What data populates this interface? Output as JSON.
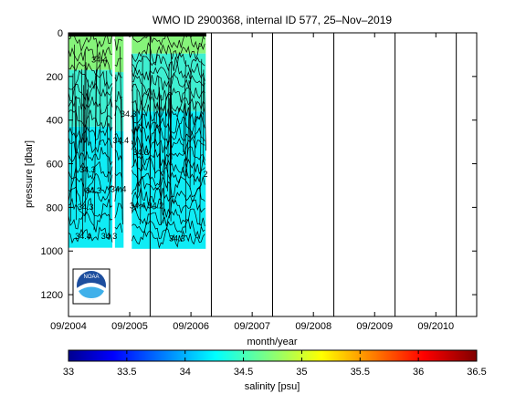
{
  "chart_data": {
    "type": "heatmap",
    "title": "WMO ID 2900368, internal ID 577, 25–Nov–2019",
    "xlabel": "month/year",
    "ylabel": "pressure [dbar]",
    "x_tick_labels": [
      "09/2004",
      "09/2005",
      "09/2006",
      "09/2007",
      "09/2008",
      "09/2009",
      "09/2010"
    ],
    "y_tick_labels": [
      "0",
      "200",
      "400",
      "600",
      "800",
      "1000",
      "1200"
    ],
    "y_ticks": [
      0,
      200,
      400,
      600,
      800,
      1000,
      1200
    ],
    "ylim": [
      1300,
      0
    ],
    "y_reversed": true,
    "xlim_months": [
      0,
      80
    ],
    "x_tick_months": [
      0,
      12,
      24,
      36,
      48,
      60,
      72
    ],
    "vertical_lines_months": [
      16,
      28,
      40,
      52,
      64,
      76
    ],
    "data_extent_months": [
      0,
      27
    ],
    "data_max_pressure": 1000,
    "gap_months": [
      [
        8.6,
        9.1
      ],
      [
        10.8,
        12.4
      ]
    ],
    "salinity_regions": [
      {
        "start": 0,
        "end": 8.6,
        "fresh_to": 170,
        "mid_to": 430,
        "top": 0,
        "bottom": 985
      },
      {
        "start": 9.1,
        "end": 10.8,
        "fresh_to": 180,
        "mid_to": 450,
        "top": 0,
        "bottom": 985
      },
      {
        "start": 12.4,
        "end": 26.9,
        "fresh_to": 95,
        "mid_to": 360,
        "top": 0,
        "bottom": 990
      }
    ],
    "contour_labels": [
      {
        "text": "34.4",
        "month": 4.5,
        "p": 135
      },
      {
        "text": "34.3",
        "month": 10.2,
        "p": 385
      },
      {
        "text": "34.4",
        "month": 8.7,
        "p": 505
      },
      {
        "text": "34.3",
        "month": 2.2,
        "p": 640
      },
      {
        "text": "34.3",
        "month": 12.6,
        "p": 560
      },
      {
        "text": "34.3",
        "month": 3.3,
        "p": 735
      },
      {
        "text": "34.4",
        "month": 8.2,
        "p": 730
      },
      {
        "text": "34.3",
        "month": 1.8,
        "p": 810
      },
      {
        "text": "34.4",
        "month": 12.0,
        "p": 805
      },
      {
        "text": "34.2",
        "month": 15.5,
        "p": 805
      },
      {
        "text": "34.4",
        "month": 1.3,
        "p": 945
      },
      {
        "text": "34.3",
        "month": 6.4,
        "p": 945
      },
      {
        "text": "34.3",
        "month": 19.7,
        "p": 955
      },
      {
        "text": "2",
        "month": 26.4,
        "p": 660
      }
    ],
    "colorbar": {
      "label": "salinity [psu]",
      "min": 33,
      "max": 36.5,
      "tick_labels": [
        "33",
        "33.5",
        "34",
        "34.5",
        "35",
        "35.5",
        "36",
        "36.5"
      ],
      "ticks": [
        33,
        33.5,
        34,
        34.5,
        35,
        35.5,
        36,
        36.5
      ],
      "colormap": "jet"
    },
    "colors": {
      "fresh": "#86f47a",
      "mid": "#3fefd1",
      "deep": "#10ecf5",
      "contour": "#000000",
      "surface_bar": "#000000"
    },
    "logo_text": "NOAA"
  }
}
